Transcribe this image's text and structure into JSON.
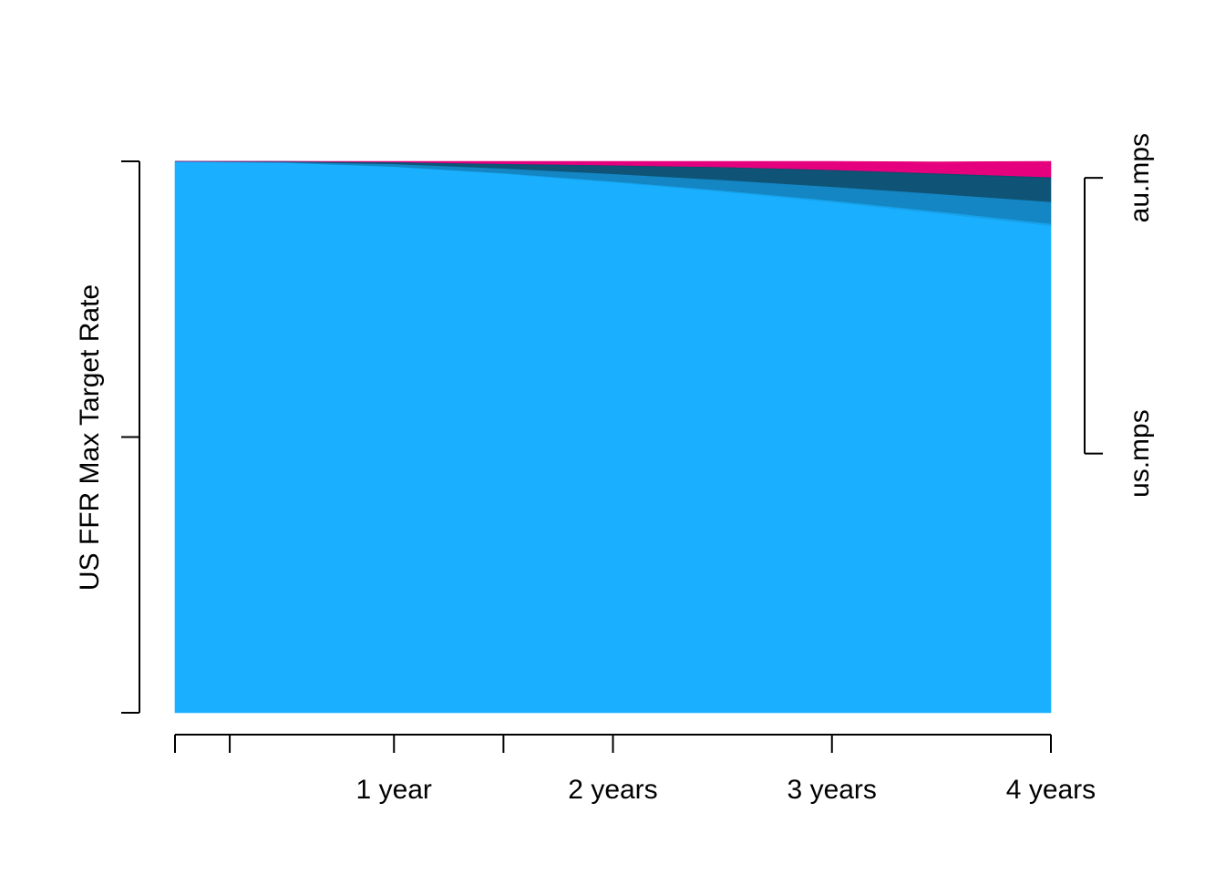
{
  "chart_data": {
    "type": "area",
    "stacked": true,
    "normalized": true,
    "ylabel": "US FFR Max Target Rate",
    "xlabel": "",
    "x_unit": "months",
    "x": [
      0,
      6,
      12,
      18,
      24,
      30,
      36,
      42,
      48
    ],
    "x_ticks": [
      {
        "value": 0,
        "label": ""
      },
      {
        "value": 3,
        "label": ""
      },
      {
        "value": 12,
        "label": "1 year"
      },
      {
        "value": 18,
        "label": ""
      },
      {
        "value": 24,
        "label": "2 years"
      },
      {
        "value": 36,
        "label": "3 years"
      },
      {
        "value": 48,
        "label": "4 years"
      }
    ],
    "y_ticks": [
      0,
      0.5,
      1
    ],
    "ylim": [
      0,
      1
    ],
    "series": [
      {
        "name": "us.mps",
        "color": "#1AB0FF",
        "values": [
          1.0,
          0.9975,
          0.99,
          0.9775,
          0.962,
          0.945,
          0.926,
          0.905,
          0.883
        ]
      },
      {
        "name": "",
        "color": "#18A2EB",
        "values": [
          0.0,
          0.0003,
          0.0008,
          0.0013,
          0.0018,
          0.0024,
          0.003,
          0.0036,
          0.0042
        ]
      },
      {
        "name": "",
        "color": "#1386C3",
        "values": [
          0.0,
          0.0012,
          0.0045,
          0.0085,
          0.0135,
          0.019,
          0.025,
          0.032,
          0.0395
        ]
      },
      {
        "name": "au.mps",
        "color": "#0F5477",
        "values": [
          0.0,
          0.0008,
          0.003,
          0.0075,
          0.0145,
          0.022,
          0.029,
          0.0355,
          0.0425
        ]
      },
      {
        "name": "",
        "color": "#0E4C6C",
        "values": [
          0.0,
          0.0001,
          0.0005,
          0.0009,
          0.0012,
          0.0015,
          0.0018,
          0.002,
          0.0023
        ]
      },
      {
        "name": "",
        "color": "#E5007E",
        "values": [
          0.0,
          0.0001,
          0.0012,
          0.0043,
          0.007,
          0.0101,
          0.0152,
          0.0209,
          0.0285
        ]
      }
    ],
    "right_axis": {
      "ticks": [
        {
          "value": 0.47,
          "label": "us.mps"
        },
        {
          "value": 0.97,
          "label": "au.mps"
        }
      ]
    }
  }
}
